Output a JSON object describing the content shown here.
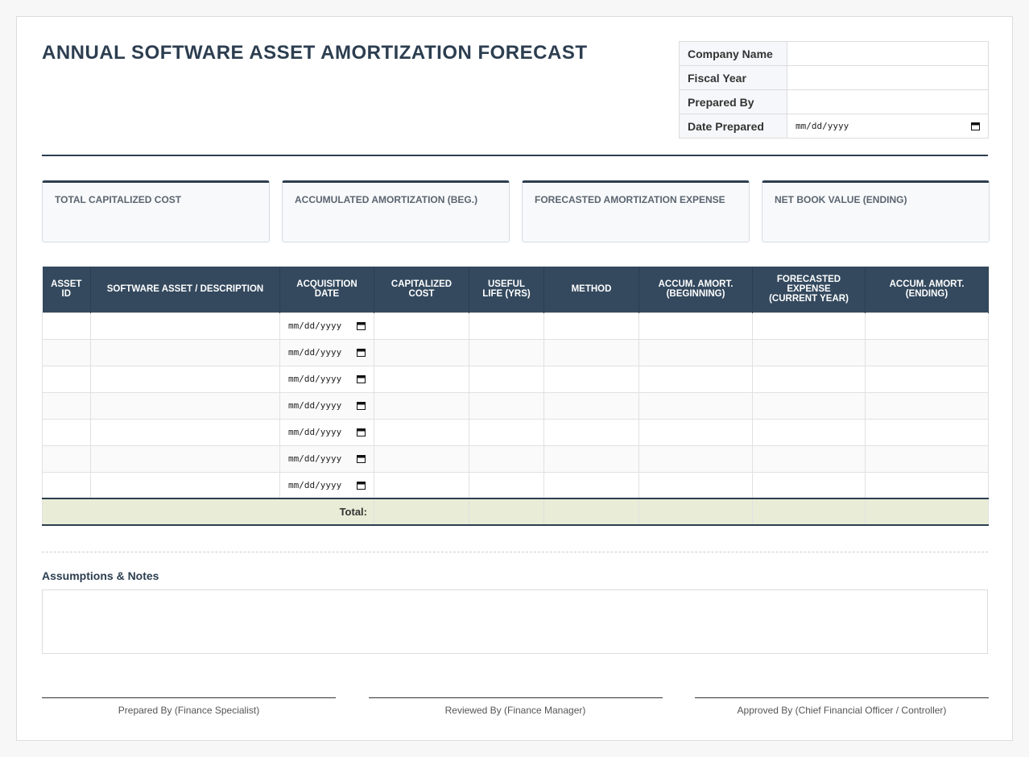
{
  "header": {
    "title": "ANNUAL SOFTWARE ASSET AMORTIZATION FORECAST"
  },
  "info": {
    "rows": [
      {
        "label": "Company Name"
      },
      {
        "label": "Fiscal Year"
      },
      {
        "label": "Prepared By"
      },
      {
        "label": "Date Prepared",
        "value": "mm/dd/yyyy"
      }
    ]
  },
  "summary": {
    "cards": [
      {
        "label": "TOTAL CAPITALIZED COST"
      },
      {
        "label": "ACCUMULATED AMORTIZATION (BEG.)"
      },
      {
        "label": "FORECASTED AMORTIZATION EXPENSE"
      },
      {
        "label": "NET BOOK VALUE (ENDING)"
      }
    ]
  },
  "table": {
    "columns": [
      "ASSET\nID",
      "SOFTWARE ASSET / DESCRIPTION",
      "ACQUISITION\nDATE",
      "CAPITALIZED\nCOST",
      "USEFUL\nLIFE (YRS)",
      "METHOD",
      "ACCUM. AMORT.\n(BEGINNING)",
      "FORECASTED\nEXPENSE\n(CURRENT YEAR)",
      "ACCUM. AMORT.\n(ENDING)"
    ],
    "rows": [
      {
        "acquisition_date": "mm/dd/yyyy"
      },
      {
        "acquisition_date": "mm/dd/yyyy"
      },
      {
        "acquisition_date": "mm/dd/yyyy"
      },
      {
        "acquisition_date": "mm/dd/yyyy"
      },
      {
        "acquisition_date": "mm/dd/yyyy"
      },
      {
        "acquisition_date": "mm/dd/yyyy"
      },
      {
        "acquisition_date": "mm/dd/yyyy"
      }
    ],
    "total_label": "Total:"
  },
  "notes": {
    "title": "Assumptions & Notes"
  },
  "signatures": [
    "Prepared By (Finance Specialist)",
    "Reviewed By (Finance Manager)",
    "Approved By (Chief Financial Officer / Controller)"
  ]
}
